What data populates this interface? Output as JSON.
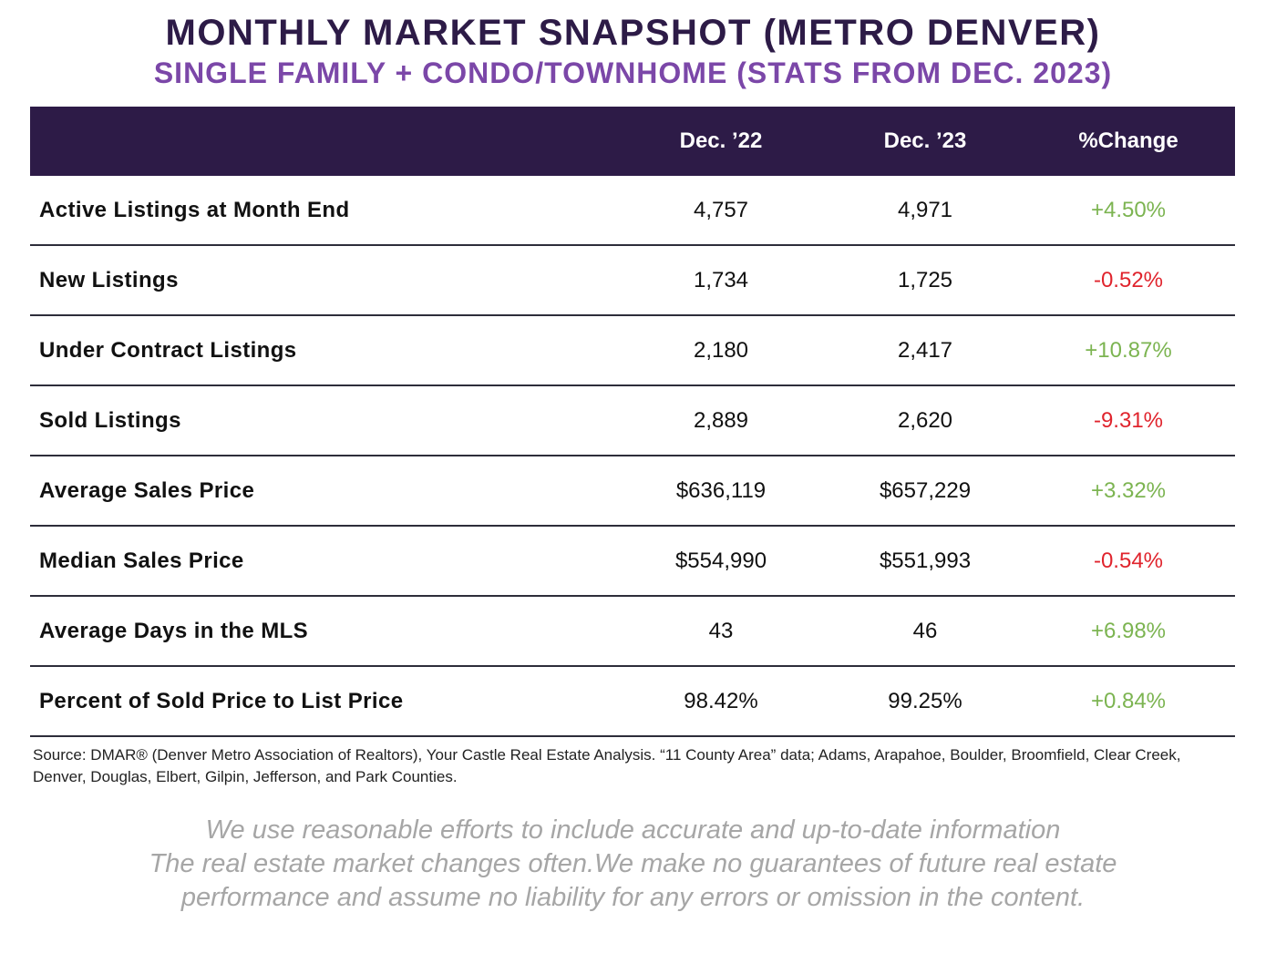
{
  "title": "MONTHLY MARKET SNAPSHOT (METRO DENVER)",
  "subtitle": "SINGLE FAMILY + CONDO/TOWNHOME (STATS FROM DEC. 2023)",
  "colors": {
    "header_bg": "#2d1b47",
    "subtitle": "#7b47a8",
    "positive": "#7cb451",
    "negative": "#e0242d",
    "disclaimer": "#a6a6a6"
  },
  "chart_data": {
    "type": "table",
    "columns": [
      "",
      "Dec. ’22",
      "Dec. ’23",
      "%Change"
    ],
    "rows": [
      {
        "label": "Active Listings at Month End",
        "dec22": "4,757",
        "dec23": "4,971",
        "change": "+4.50%",
        "trend": "pos"
      },
      {
        "label": "New Listings",
        "dec22": "1,734",
        "dec23": "1,725",
        "change": "-0.52%",
        "trend": "neg"
      },
      {
        "label": "Under Contract Listings",
        "dec22": "2,180",
        "dec23": "2,417",
        "change": "+10.87%",
        "trend": "pos"
      },
      {
        "label": "Sold Listings",
        "dec22": "2,889",
        "dec23": "2,620",
        "change": "-9.31%",
        "trend": "neg"
      },
      {
        "label": "Average Sales Price",
        "dec22": "$636,119",
        "dec23": "$657,229",
        "change": "+3.32%",
        "trend": "pos"
      },
      {
        "label": "Median Sales Price",
        "dec22": "$554,990",
        "dec23": "$551,993",
        "change": "-0.54%",
        "trend": "neg"
      },
      {
        "label": "Average Days in the MLS",
        "dec22": "43",
        "dec23": "46",
        "change": "+6.98%",
        "trend": "pos"
      },
      {
        "label": "Percent of Sold Price to List Price",
        "dec22": "98.42%",
        "dec23": "99.25%",
        "change": "+0.84%",
        "trend": "pos"
      }
    ]
  },
  "source": "Source: DMAR® (Denver Metro Association of Realtors), Your Castle Real Estate Analysis. “11 County Area” data; Adams, Arapahoe, Boulder, Broomfield, Clear Creek, Denver, Douglas, Elbert, Gilpin, Jefferson, and Park Counties.",
  "disclaimer": [
    "We use reasonable efforts to include accurate and up-to-date information",
    "The real estate market changes often.We make no guarantees of future real estate",
    "performance and assume no liability for any errors or omission in the content."
  ]
}
